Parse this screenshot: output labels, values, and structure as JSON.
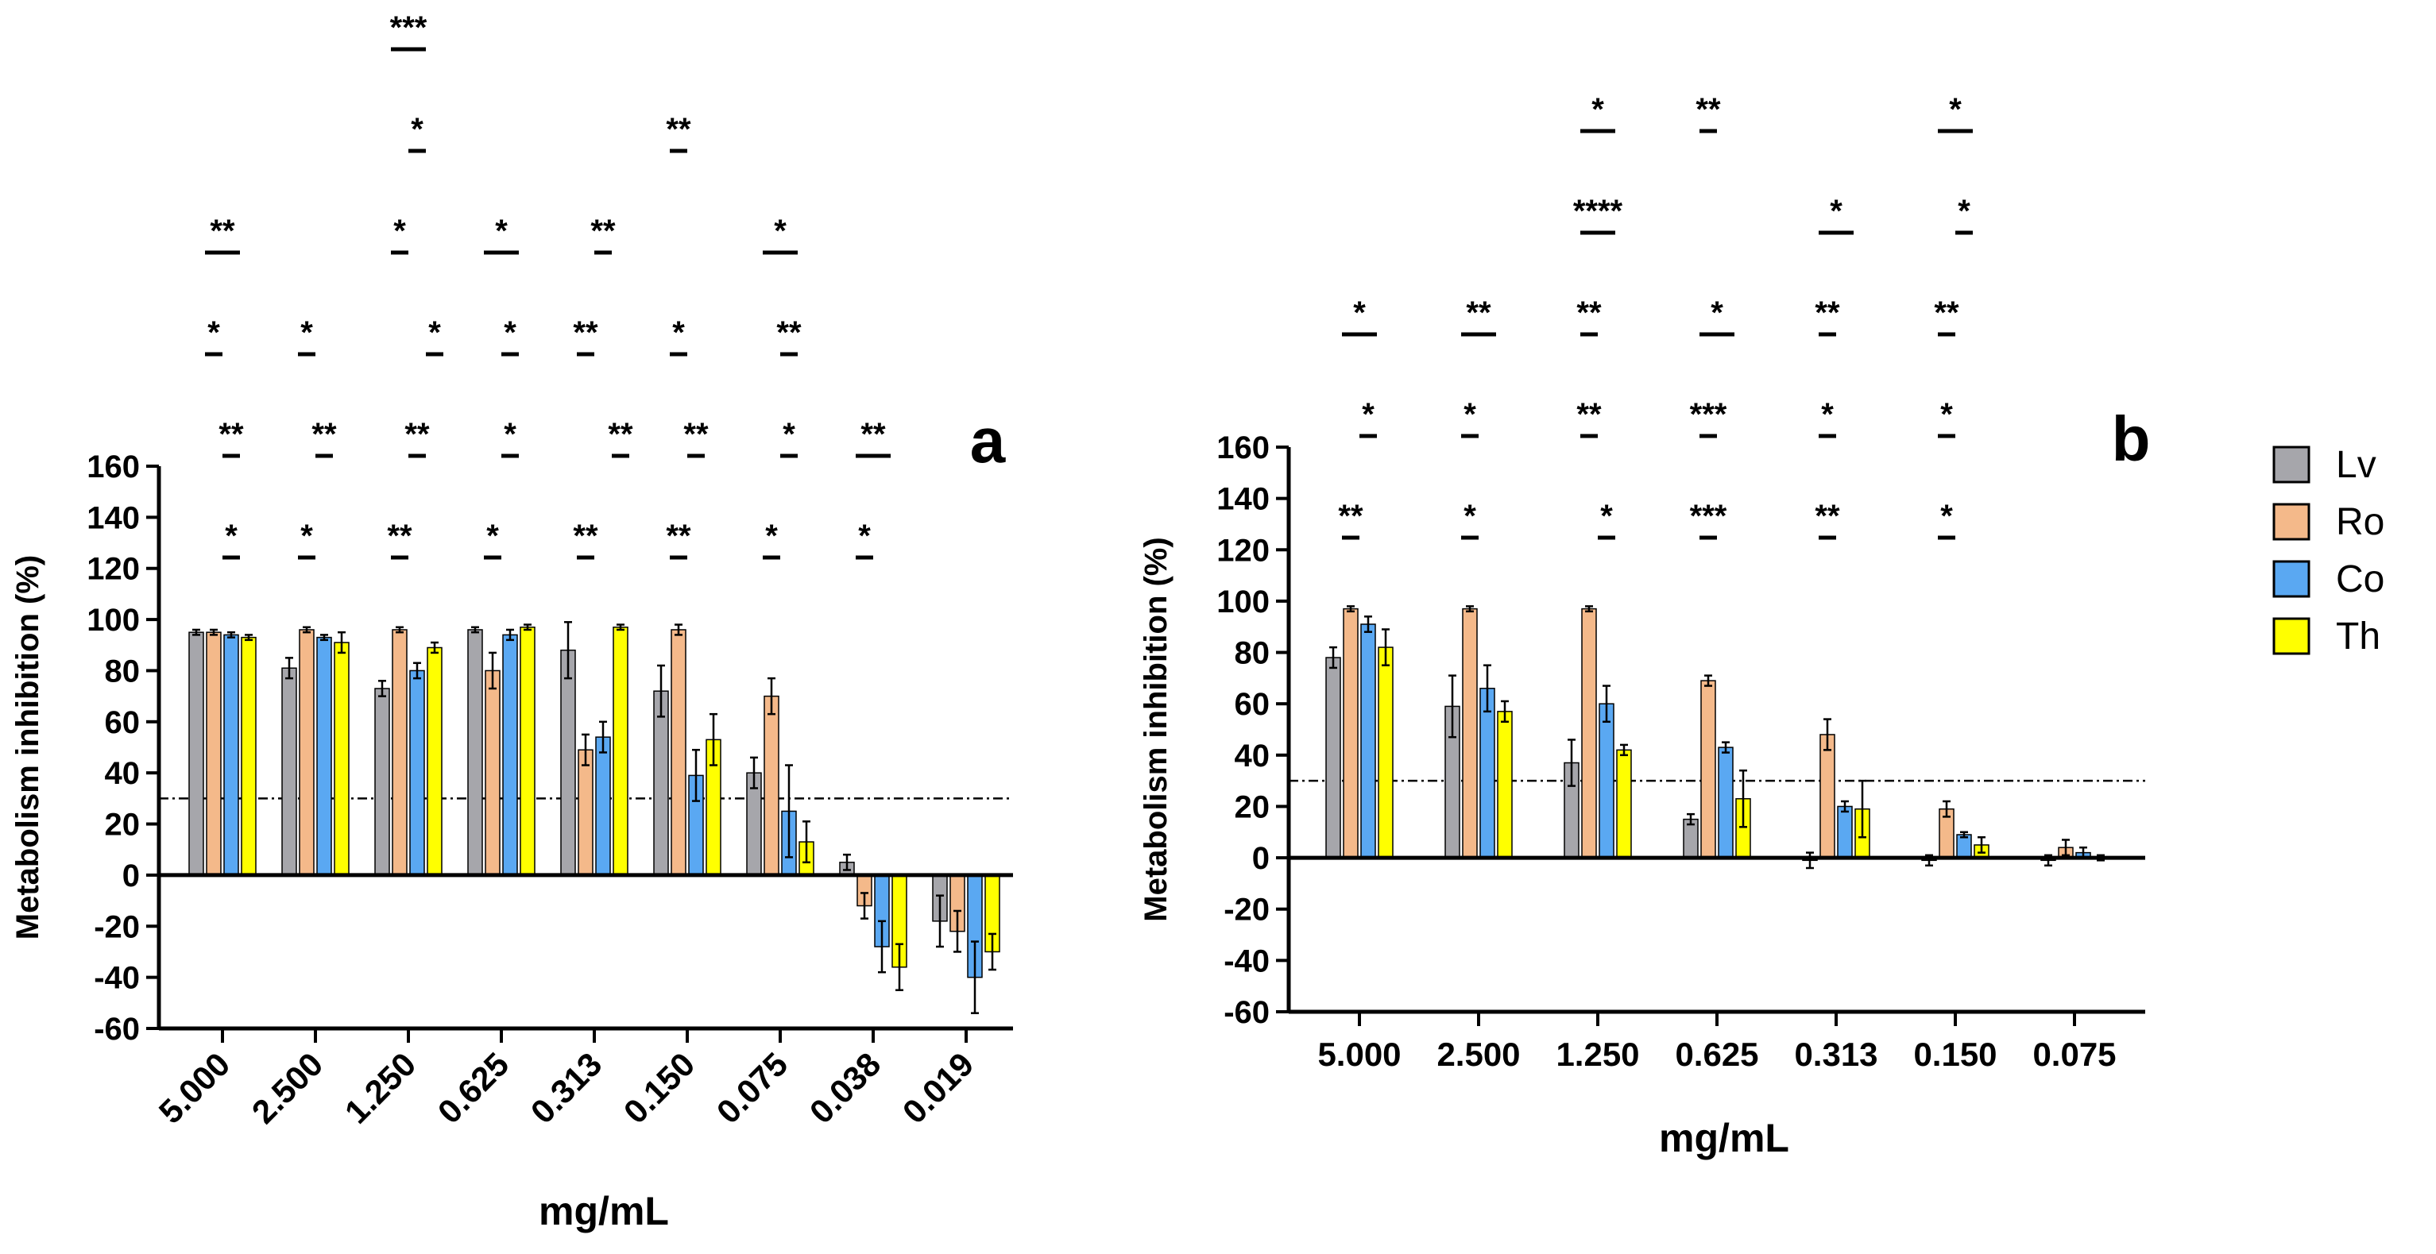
{
  "chart_data": [
    {
      "type": "bar",
      "panel_label": "a",
      "xlabel": "mg/mL",
      "ylabel": "Metabolism inhibition (%)",
      "ylim": [
        -60,
        160
      ],
      "yticks": [
        -60,
        -40,
        -20,
        0,
        20,
        40,
        60,
        80,
        100,
        120,
        140,
        160
      ],
      "threshold_line": 30,
      "categories": [
        "5.000",
        "2.500",
        "1.250",
        "0.625",
        "0.313",
        "0.150",
        "0.075",
        "0.038",
        "0.019"
      ],
      "series": [
        {
          "name": "Lv",
          "values": [
            95,
            81,
            73,
            96,
            88,
            72,
            40,
            5,
            -18
          ],
          "errors": [
            1,
            4,
            3,
            1,
            11,
            10,
            6,
            3,
            10
          ]
        },
        {
          "name": "Ro",
          "values": [
            95,
            96,
            96,
            80,
            49,
            96,
            70,
            -12,
            -22
          ],
          "errors": [
            1,
            1,
            1,
            7,
            6,
            2,
            7,
            5,
            8
          ]
        },
        {
          "name": "Co",
          "values": [
            94,
            93,
            80,
            94,
            54,
            39,
            25,
            -28,
            -40
          ],
          "errors": [
            1,
            1,
            3,
            2,
            6,
            10,
            18,
            10,
            14
          ]
        },
        {
          "name": "Th",
          "values": [
            93,
            91,
            89,
            97,
            97,
            53,
            13,
            -36,
            -30
          ],
          "errors": [
            1,
            4,
            2,
            1,
            1,
            10,
            8,
            9,
            7
          ]
        }
      ],
      "significance": [
        {
          "label": "*",
          "from": [
            0,
            0
          ],
          "to": [
            0,
            1
          ],
          "level": 0
        },
        {
          "label": "**",
          "from": [
            0,
            0
          ],
          "to": [
            0,
            1
          ],
          "level": 1
        },
        {
          "label": "*",
          "from": [
            0,
            -1
          ],
          "to": [
            0,
            0
          ],
          "level": 2
        },
        {
          "label": "**",
          "from": [
            0,
            -1
          ],
          "to": [
            0,
            1
          ],
          "level": 3
        },
        {
          "label": "*",
          "from": [
            1,
            -1
          ],
          "to": [
            1,
            0
          ],
          "level": 0
        },
        {
          "label": "**",
          "from": [
            1,
            0
          ],
          "to": [
            1,
            1
          ],
          "level": 1
        },
        {
          "label": "*",
          "from": [
            1,
            -1
          ],
          "to": [
            1,
            0
          ],
          "level": 2
        },
        {
          "label": "**",
          "from": [
            2,
            -1
          ],
          "to": [
            2,
            0
          ],
          "level": 0
        },
        {
          "label": "**",
          "from": [
            2,
            0
          ],
          "to": [
            2,
            1
          ],
          "level": 1
        },
        {
          "label": "*",
          "from": [
            2,
            1
          ],
          "to": [
            2,
            2
          ],
          "level": 2
        },
        {
          "label": "*",
          "from": [
            2,
            -1
          ],
          "to": [
            2,
            0
          ],
          "level": 3
        },
        {
          "label": "*",
          "from": [
            2,
            0
          ],
          "to": [
            2,
            1
          ],
          "level": 4
        },
        {
          "label": "***",
          "from": [
            2,
            -1
          ],
          "to": [
            2,
            1
          ],
          "level": 5
        },
        {
          "label": "*",
          "from": [
            3,
            -1
          ],
          "to": [
            3,
            0
          ],
          "level": 0
        },
        {
          "label": "*",
          "from": [
            3,
            0
          ],
          "to": [
            3,
            1
          ],
          "level": 1
        },
        {
          "label": "*",
          "from": [
            3,
            0
          ],
          "to": [
            3,
            1
          ],
          "level": 2
        },
        {
          "label": "*",
          "from": [
            3,
            -1
          ],
          "to": [
            3,
            1
          ],
          "level": 3
        },
        {
          "label": "**",
          "from": [
            4,
            -1
          ],
          "to": [
            4,
            0
          ],
          "level": 0
        },
        {
          "label": "**",
          "from": [
            4,
            1
          ],
          "to": [
            4,
            2
          ],
          "level": 1
        },
        {
          "label": "**",
          "from": [
            4,
            -1
          ],
          "to": [
            4,
            0
          ],
          "level": 2
        },
        {
          "label": "**",
          "from": [
            4,
            0
          ],
          "to": [
            4,
            1
          ],
          "level": 3
        },
        {
          "label": "**",
          "from": [
            5,
            -1
          ],
          "to": [
            5,
            0
          ],
          "level": 0
        },
        {
          "label": "**",
          "from": [
            5,
            0
          ],
          "to": [
            5,
            1
          ],
          "level": 1
        },
        {
          "label": "*",
          "from": [
            5,
            -1
          ],
          "to": [
            5,
            0
          ],
          "level": 2
        },
        {
          "label": "**",
          "from": [
            5,
            -1
          ],
          "to": [
            5,
            0
          ],
          "level": 4
        },
        {
          "label": "*",
          "from": [
            6,
            -1
          ],
          "to": [
            6,
            0
          ],
          "level": 0
        },
        {
          "label": "*",
          "from": [
            6,
            0
          ],
          "to": [
            6,
            1
          ],
          "level": 1
        },
        {
          "label": "**",
          "from": [
            6,
            0
          ],
          "to": [
            6,
            1
          ],
          "level": 2
        },
        {
          "label": "*",
          "from": [
            6,
            -1
          ],
          "to": [
            6,
            1
          ],
          "level": 3
        },
        {
          "label": "*",
          "from": [
            7,
            -1
          ],
          "to": [
            7,
            0
          ],
          "level": 0
        },
        {
          "label": "**",
          "from": [
            7,
            -1
          ],
          "to": [
            7,
            1
          ],
          "level": 1
        }
      ]
    },
    {
      "type": "bar",
      "panel_label": "b",
      "xlabel": "mg/mL",
      "ylabel": "Metabolism inhibition (%)",
      "ylim": [
        -60,
        160
      ],
      "yticks": [
        -60,
        -40,
        -20,
        0,
        20,
        40,
        60,
        80,
        100,
        120,
        140,
        160
      ],
      "threshold_line": 30,
      "categories": [
        "5.000",
        "2.500",
        "1.250",
        "0.625",
        "0.313",
        "0.150",
        "0.075"
      ],
      "series": [
        {
          "name": "Lv",
          "values": [
            78,
            59,
            37,
            15,
            -1,
            -1,
            -1
          ],
          "errors": [
            4,
            12,
            9,
            2,
            3,
            2,
            2
          ]
        },
        {
          "name": "Ro",
          "values": [
            97,
            97,
            97,
            69,
            48,
            19,
            4
          ],
          "errors": [
            1,
            1,
            1,
            2,
            6,
            3,
            3
          ]
        },
        {
          "name": "Co",
          "values": [
            91,
            66,
            60,
            43,
            20,
            9,
            2
          ],
          "errors": [
            3,
            9,
            7,
            2,
            2,
            1,
            2
          ]
        },
        {
          "name": "Th",
          "values": [
            82,
            57,
            42,
            23,
            19,
            5,
            0
          ],
          "errors": [
            7,
            4,
            2,
            11,
            11,
            3,
            1
          ]
        }
      ],
      "significance": [
        {
          "label": "**",
          "from": [
            0,
            -1
          ],
          "to": [
            0,
            0
          ],
          "level": 0
        },
        {
          "label": "*",
          "from": [
            0,
            0
          ],
          "to": [
            0,
            1
          ],
          "level": 1
        },
        {
          "label": "*",
          "from": [
            0,
            -1
          ],
          "to": [
            0,
            1
          ],
          "level": 2
        },
        {
          "label": "*",
          "from": [
            1,
            -1
          ],
          "to": [
            1,
            0
          ],
          "level": 0
        },
        {
          "label": "*",
          "from": [
            1,
            -1
          ],
          "to": [
            1,
            0
          ],
          "level": 1
        },
        {
          "label": "**",
          "from": [
            1,
            -1
          ],
          "to": [
            1,
            1
          ],
          "level": 2
        },
        {
          "label": "*",
          "from": [
            2,
            0
          ],
          "to": [
            2,
            1
          ],
          "level": 0
        },
        {
          "label": "**",
          "from": [
            2,
            -1
          ],
          "to": [
            2,
            0
          ],
          "level": 1
        },
        {
          "label": "**",
          "from": [
            2,
            -1
          ],
          "to": [
            2,
            0
          ],
          "level": 2
        },
        {
          "label": "****",
          "from": [
            2,
            -1
          ],
          "to": [
            2,
            1
          ],
          "level": 3
        },
        {
          "label": "*",
          "from": [
            2,
            -1
          ],
          "to": [
            2,
            1
          ],
          "level": 4
        },
        {
          "label": "***",
          "from": [
            3,
            -1
          ],
          "to": [
            3,
            0
          ],
          "level": 0
        },
        {
          "label": "***",
          "from": [
            3,
            -1
          ],
          "to": [
            3,
            0
          ],
          "level": 1
        },
        {
          "label": "*",
          "from": [
            3,
            -1
          ],
          "to": [
            3,
            1
          ],
          "level": 2
        },
        {
          "label": "**",
          "from": [
            3,
            -1
          ],
          "to": [
            3,
            0
          ],
          "level": 4
        },
        {
          "label": "**",
          "from": [
            4,
            -1
          ],
          "to": [
            4,
            0
          ],
          "level": 0
        },
        {
          "label": "*",
          "from": [
            4,
            -1
          ],
          "to": [
            4,
            0
          ],
          "level": 1
        },
        {
          "label": "**",
          "from": [
            4,
            -1
          ],
          "to": [
            4,
            0
          ],
          "level": 2
        },
        {
          "label": "*",
          "from": [
            4,
            -1
          ],
          "to": [
            4,
            1
          ],
          "level": 3
        },
        {
          "label": "*",
          "from": [
            5,
            -1
          ],
          "to": [
            5,
            0
          ],
          "level": 0
        },
        {
          "label": "*",
          "from": [
            5,
            -1
          ],
          "to": [
            5,
            0
          ],
          "level": 1
        },
        {
          "label": "**",
          "from": [
            5,
            -1
          ],
          "to": [
            5,
            0
          ],
          "level": 2
        },
        {
          "label": "*",
          "from": [
            5,
            0
          ],
          "to": [
            5,
            1
          ],
          "level": 3
        },
        {
          "label": "*",
          "from": [
            5,
            -1
          ],
          "to": [
            5,
            1
          ],
          "level": 4
        }
      ]
    }
  ],
  "legend": {
    "entries": [
      {
        "name": "Lv",
        "color": "#a6a6ab"
      },
      {
        "name": "Ro",
        "color": "#f4b98a"
      },
      {
        "name": "Co",
        "color": "#5aa8f2"
      },
      {
        "name": "Th",
        "color": "#ffff00"
      }
    ]
  }
}
